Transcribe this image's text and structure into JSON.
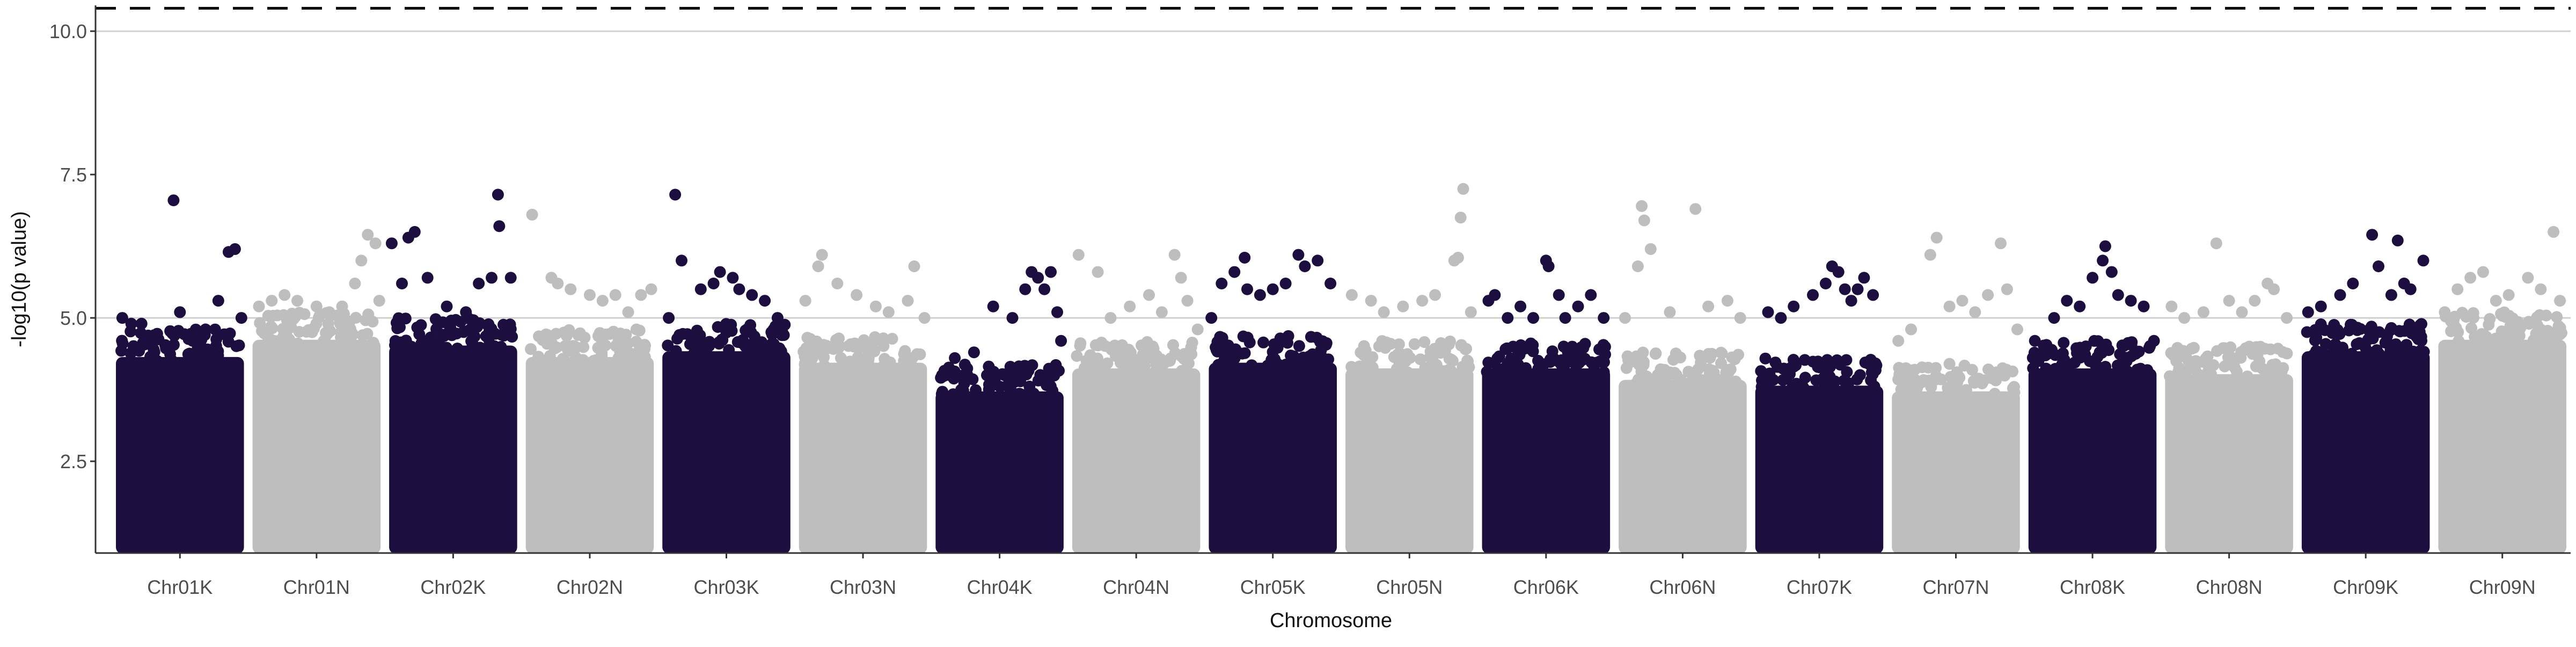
{
  "chart_data": {
    "type": "scatter",
    "title": "",
    "xlabel": "Chromosome",
    "ylabel": "-log10(p value)",
    "ylim": [
      0.9,
      10.45
    ],
    "yticks": [
      2.5,
      5.0,
      7.5,
      10.0
    ],
    "ytick_labels": [
      "2.5",
      "5.0",
      "7.5",
      "10.0"
    ],
    "grid": "major horizontal lines only",
    "legend": "none",
    "colors": {
      "odd_chromosome": "#1c0f3f",
      "even_chromosome": "#bebebe",
      "threshold": "#000000",
      "gridline": "#d0d0d0",
      "axis": "#333333",
      "text": "#333333"
    },
    "reference_lines": [
      {
        "y": 10.4,
        "style": "dashed",
        "color": "#000000"
      },
      {
        "y": 10.0,
        "style": "solid",
        "color": "#d0d0d0"
      },
      {
        "y": 5.0,
        "style": "solid",
        "color": "#d0d0d0"
      }
    ],
    "base_level": 1.0,
    "categories": [
      "Chr01K",
      "Chr01N",
      "Chr02K",
      "Chr02N",
      "Chr03K",
      "Chr03N",
      "Chr04K",
      "Chr04N",
      "Chr05K",
      "Chr05N",
      "Chr06K",
      "Chr06N",
      "Chr07K",
      "Chr07N",
      "Chr08K",
      "Chr08N",
      "Chr09K",
      "Chr09N"
    ],
    "series": [
      {
        "chromosome": "Chr01K",
        "color": "#1c0f3f",
        "bulk_max": 4.6,
        "points": [
          [
            0.05,
            5.0
          ],
          [
            0.12,
            4.9
          ],
          [
            0.2,
            4.9
          ],
          [
            0.3,
            4.7
          ],
          [
            0.45,
            7.05
          ],
          [
            0.5,
            5.1
          ],
          [
            0.6,
            4.6
          ],
          [
            0.7,
            4.8
          ],
          [
            0.8,
            5.3
          ],
          [
            0.88,
            6.15
          ],
          [
            0.93,
            6.2
          ],
          [
            0.98,
            5.0
          ]
        ]
      },
      {
        "chromosome": "Chr01N",
        "color": "#bebebe",
        "bulk_max": 4.9,
        "points": [
          [
            0.05,
            5.2
          ],
          [
            0.15,
            5.3
          ],
          [
            0.25,
            5.4
          ],
          [
            0.35,
            5.3
          ],
          [
            0.5,
            5.2
          ],
          [
            0.6,
            5.1
          ],
          [
            0.7,
            5.2
          ],
          [
            0.8,
            5.6
          ],
          [
            0.85,
            6.0
          ],
          [
            0.9,
            6.45
          ],
          [
            0.96,
            6.3
          ],
          [
            0.99,
            5.3
          ]
        ]
      },
      {
        "chromosome": "Chr02K",
        "color": "#1c0f3f",
        "bulk_max": 4.8,
        "points": [
          [
            0.02,
            6.3
          ],
          [
            0.1,
            5.6
          ],
          [
            0.15,
            6.4
          ],
          [
            0.2,
            6.5
          ],
          [
            0.3,
            5.7
          ],
          [
            0.45,
            5.2
          ],
          [
            0.6,
            5.1
          ],
          [
            0.7,
            5.6
          ],
          [
            0.8,
            5.7
          ],
          [
            0.85,
            7.15
          ],
          [
            0.86,
            6.6
          ],
          [
            0.95,
            5.7
          ]
        ]
      },
      {
        "chromosome": "Chr02N",
        "color": "#bebebe",
        "bulk_max": 4.6,
        "points": [
          [
            0.05,
            6.8
          ],
          [
            0.2,
            5.7
          ],
          [
            0.25,
            5.6
          ],
          [
            0.35,
            5.5
          ],
          [
            0.5,
            5.4
          ],
          [
            0.6,
            5.3
          ],
          [
            0.7,
            5.4
          ],
          [
            0.8,
            5.1
          ],
          [
            0.9,
            5.4
          ],
          [
            0.98,
            5.5
          ]
        ]
      },
      {
        "chromosome": "Chr03K",
        "color": "#1c0f3f",
        "bulk_max": 4.7,
        "points": [
          [
            0.05,
            5.0
          ],
          [
            0.1,
            7.15
          ],
          [
            0.15,
            6.0
          ],
          [
            0.3,
            5.5
          ],
          [
            0.4,
            5.6
          ],
          [
            0.45,
            5.8
          ],
          [
            0.55,
            5.7
          ],
          [
            0.6,
            5.5
          ],
          [
            0.7,
            5.4
          ],
          [
            0.8,
            5.3
          ],
          [
            0.9,
            5.0
          ]
        ]
      },
      {
        "chromosome": "Chr03N",
        "color": "#bebebe",
        "bulk_max": 4.5,
        "points": [
          [
            0.05,
            5.3
          ],
          [
            0.15,
            5.9
          ],
          [
            0.18,
            6.1
          ],
          [
            0.3,
            5.6
          ],
          [
            0.45,
            5.4
          ],
          [
            0.6,
            5.2
          ],
          [
            0.7,
            5.1
          ],
          [
            0.85,
            5.3
          ],
          [
            0.9,
            5.9
          ],
          [
            0.98,
            5.0
          ]
        ]
      },
      {
        "chromosome": "Chr04K",
        "color": "#1c0f3f",
        "bulk_max": 4.0,
        "points": [
          [
            0.05,
            4.0
          ],
          [
            0.15,
            4.3
          ],
          [
            0.3,
            4.4
          ],
          [
            0.45,
            5.2
          ],
          [
            0.6,
            5.0
          ],
          [
            0.7,
            5.5
          ],
          [
            0.75,
            5.8
          ],
          [
            0.8,
            5.7
          ],
          [
            0.85,
            5.5
          ],
          [
            0.9,
            5.8
          ],
          [
            0.95,
            5.1
          ],
          [
            0.98,
            4.6
          ]
        ]
      },
      {
        "chromosome": "Chr04N",
        "color": "#bebebe",
        "bulk_max": 4.4,
        "points": [
          [
            0.05,
            6.1
          ],
          [
            0.2,
            5.8
          ],
          [
            0.3,
            5.0
          ],
          [
            0.45,
            5.2
          ],
          [
            0.6,
            5.4
          ],
          [
            0.7,
            5.1
          ],
          [
            0.8,
            6.1
          ],
          [
            0.85,
            5.7
          ],
          [
            0.9,
            5.3
          ],
          [
            0.98,
            4.8
          ]
        ]
      },
      {
        "chromosome": "Chr05K",
        "color": "#1c0f3f",
        "bulk_max": 4.5,
        "points": [
          [
            0.02,
            5.0
          ],
          [
            0.1,
            5.6
          ],
          [
            0.2,
            5.8
          ],
          [
            0.28,
            6.05
          ],
          [
            0.3,
            5.5
          ],
          [
            0.4,
            5.4
          ],
          [
            0.5,
            5.5
          ],
          [
            0.6,
            5.6
          ],
          [
            0.7,
            6.1
          ],
          [
            0.75,
            5.9
          ],
          [
            0.85,
            6.0
          ],
          [
            0.95,
            5.6
          ]
        ]
      },
      {
        "chromosome": "Chr05N",
        "color": "#bebebe",
        "bulk_max": 4.4,
        "points": [
          [
            0.05,
            5.4
          ],
          [
            0.2,
            5.3
          ],
          [
            0.3,
            5.1
          ],
          [
            0.45,
            5.2
          ],
          [
            0.6,
            5.3
          ],
          [
            0.7,
            5.4
          ],
          [
            0.85,
            6.0
          ],
          [
            0.88,
            6.05
          ],
          [
            0.9,
            6.75
          ],
          [
            0.92,
            7.25
          ],
          [
            0.98,
            5.1
          ]
        ]
      },
      {
        "chromosome": "Chr06K",
        "color": "#1c0f3f",
        "bulk_max": 4.4,
        "points": [
          [
            0.05,
            5.3
          ],
          [
            0.1,
            5.4
          ],
          [
            0.2,
            5.0
          ],
          [
            0.3,
            5.2
          ],
          [
            0.4,
            5.0
          ],
          [
            0.5,
            6.0
          ],
          [
            0.52,
            5.9
          ],
          [
            0.6,
            5.4
          ],
          [
            0.65,
            5.0
          ],
          [
            0.75,
            5.2
          ],
          [
            0.85,
            5.4
          ],
          [
            0.95,
            5.0
          ]
        ]
      },
      {
        "chromosome": "Chr06N",
        "color": "#bebebe",
        "bulk_max": 4.2,
        "points": [
          [
            0.05,
            5.0
          ],
          [
            0.15,
            5.9
          ],
          [
            0.18,
            6.95
          ],
          [
            0.2,
            6.7
          ],
          [
            0.25,
            6.2
          ],
          [
            0.4,
            5.1
          ],
          [
            0.6,
            6.9
          ],
          [
            0.7,
            5.2
          ],
          [
            0.85,
            5.3
          ],
          [
            0.95,
            5.0
          ]
        ]
      },
      {
        "chromosome": "Chr07K",
        "color": "#1c0f3f",
        "bulk_max": 4.1,
        "points": [
          [
            0.1,
            5.1
          ],
          [
            0.2,
            5.0
          ],
          [
            0.3,
            5.2
          ],
          [
            0.45,
            5.4
          ],
          [
            0.55,
            5.6
          ],
          [
            0.6,
            5.9
          ],
          [
            0.65,
            5.8
          ],
          [
            0.7,
            5.5
          ],
          [
            0.75,
            5.3
          ],
          [
            0.8,
            5.5
          ],
          [
            0.85,
            5.7
          ],
          [
            0.92,
            5.4
          ]
        ]
      },
      {
        "chromosome": "Chr07N",
        "color": "#bebebe",
        "bulk_max": 4.0,
        "points": [
          [
            0.05,
            4.6
          ],
          [
            0.15,
            4.8
          ],
          [
            0.3,
            6.1
          ],
          [
            0.35,
            6.4
          ],
          [
            0.45,
            5.2
          ],
          [
            0.55,
            5.3
          ],
          [
            0.65,
            5.1
          ],
          [
            0.75,
            5.4
          ],
          [
            0.85,
            6.3
          ],
          [
            0.9,
            5.5
          ],
          [
            0.98,
            4.8
          ]
        ]
      },
      {
        "chromosome": "Chr08K",
        "color": "#1c0f3f",
        "bulk_max": 4.4,
        "points": [
          [
            0.05,
            4.6
          ],
          [
            0.2,
            5.0
          ],
          [
            0.3,
            5.3
          ],
          [
            0.4,
            5.2
          ],
          [
            0.5,
            5.7
          ],
          [
            0.58,
            6.0
          ],
          [
            0.6,
            6.25
          ],
          [
            0.65,
            5.8
          ],
          [
            0.7,
            5.4
          ],
          [
            0.8,
            5.3
          ],
          [
            0.9,
            5.2
          ],
          [
            0.98,
            4.6
          ]
        ]
      },
      {
        "chromosome": "Chr08N",
        "color": "#bebebe",
        "bulk_max": 4.3,
        "points": [
          [
            0.05,
            5.2
          ],
          [
            0.15,
            5.0
          ],
          [
            0.3,
            5.1
          ],
          [
            0.4,
            6.3
          ],
          [
            0.5,
            5.3
          ],
          [
            0.6,
            5.1
          ],
          [
            0.7,
            5.3
          ],
          [
            0.8,
            5.6
          ],
          [
            0.85,
            5.5
          ],
          [
            0.95,
            5.0
          ]
        ]
      },
      {
        "chromosome": "Chr09K",
        "color": "#1c0f3f",
        "bulk_max": 4.7,
        "points": [
          [
            0.05,
            5.1
          ],
          [
            0.15,
            5.2
          ],
          [
            0.3,
            5.4
          ],
          [
            0.4,
            5.6
          ],
          [
            0.55,
            6.45
          ],
          [
            0.6,
            5.9
          ],
          [
            0.7,
            5.4
          ],
          [
            0.75,
            6.35
          ],
          [
            0.8,
            5.6
          ],
          [
            0.85,
            5.5
          ],
          [
            0.95,
            6.0
          ]
        ]
      },
      {
        "chromosome": "Chr09N",
        "color": "#bebebe",
        "bulk_max": 4.9,
        "points": [
          [
            0.05,
            5.1
          ],
          [
            0.15,
            5.5
          ],
          [
            0.25,
            5.7
          ],
          [
            0.35,
            5.8
          ],
          [
            0.45,
            5.3
          ],
          [
            0.55,
            5.4
          ],
          [
            0.7,
            5.7
          ],
          [
            0.8,
            5.5
          ],
          [
            0.9,
            6.5
          ],
          [
            0.95,
            5.3
          ]
        ]
      }
    ]
  }
}
